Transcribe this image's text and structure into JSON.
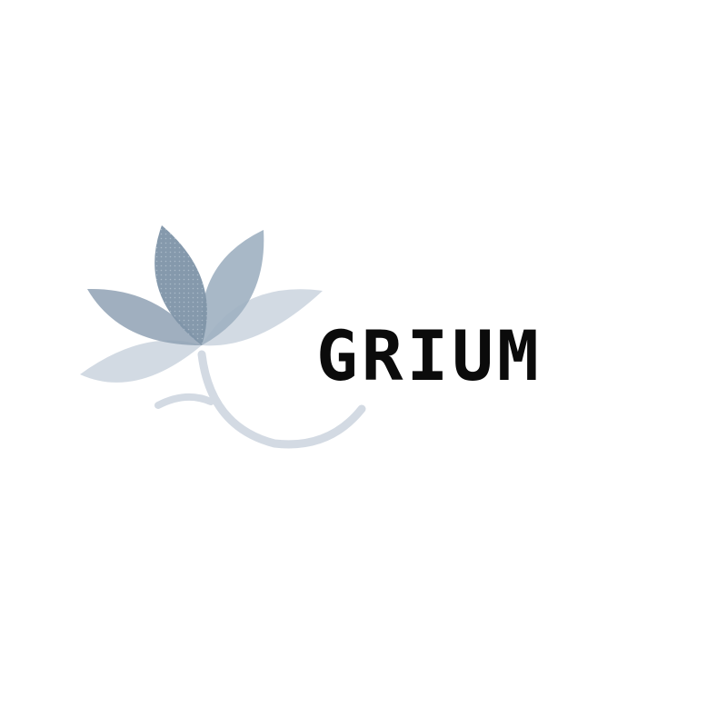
{
  "brand": {
    "name": "GRIUM"
  },
  "logo": {
    "icon": "lotus-flower-icon",
    "colors": {
      "petal_dark": "#7e93a8",
      "petal_mid": "#9fb0c1",
      "petal_light": "#cdd6e0",
      "stem": "#d3dae3",
      "text": "#0b0b0b",
      "background": "#ffffff"
    }
  }
}
